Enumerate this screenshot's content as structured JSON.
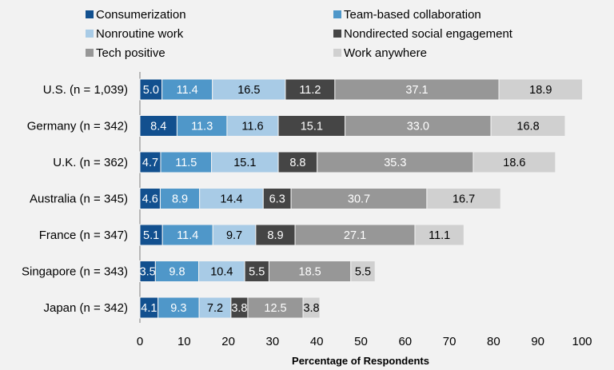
{
  "chart_data": {
    "type": "bar",
    "orientation": "horizontal",
    "stacked": true,
    "xlabel": "Percentage of Respondents",
    "ylabel": "",
    "xlim": [
      0,
      100
    ],
    "xticks": [
      0,
      10,
      20,
      30,
      40,
      50,
      60,
      70,
      80,
      90,
      100
    ],
    "legend_position": "top",
    "categories": [
      "U.S. (n = 1,039)",
      "Germany (n = 342)",
      "U.K. (n = 362)",
      "Australia (n = 345)",
      "France (n = 347)",
      "Singapore (n = 343)",
      "Japan (n = 342)"
    ],
    "series": [
      {
        "name": "Consumerization",
        "color": "#12508f",
        "label_color": "#ffffff",
        "values": [
          5.0,
          8.4,
          4.7,
          4.6,
          5.1,
          3.5,
          4.1
        ]
      },
      {
        "name": "Team-based collaboration",
        "color": "#4f97c9",
        "label_color": "#ffffff",
        "values": [
          11.4,
          11.3,
          11.5,
          8.9,
          11.4,
          9.8,
          9.3
        ]
      },
      {
        "name": "Nonroutine work",
        "color": "#a8cbe6",
        "label_color": "#000000",
        "values": [
          16.5,
          11.6,
          15.1,
          14.4,
          9.7,
          10.4,
          7.2
        ]
      },
      {
        "name": "Nondirected social engagement",
        "color": "#454545",
        "label_color": "#ffffff",
        "values": [
          11.2,
          15.1,
          8.8,
          6.3,
          8.9,
          5.5,
          3.8
        ]
      },
      {
        "name": "Tech positive",
        "color": "#979797",
        "label_color": "#ffffff",
        "values": [
          37.1,
          33.0,
          35.3,
          30.7,
          27.1,
          18.5,
          12.5
        ]
      },
      {
        "name": "Work anywhere",
        "color": "#d0d0d0",
        "label_color": "#000000",
        "values": [
          18.9,
          16.8,
          18.6,
          16.7,
          11.1,
          5.5,
          3.8
        ]
      }
    ]
  }
}
